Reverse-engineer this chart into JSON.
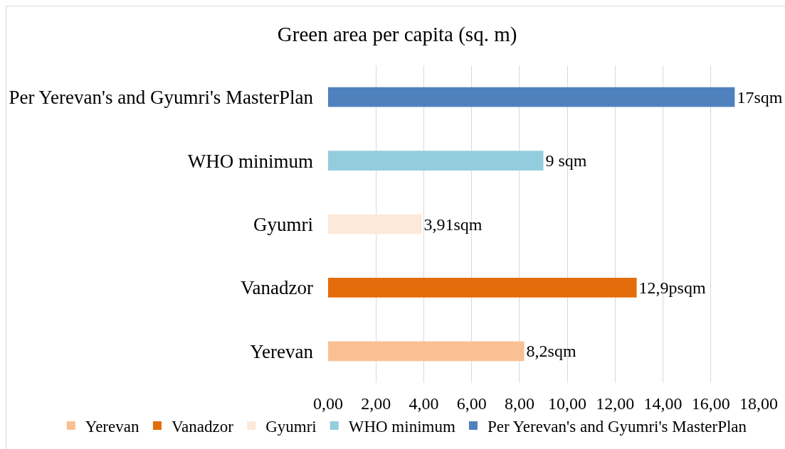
{
  "chart_data": {
    "type": "bar",
    "orientation": "horizontal",
    "title": "Green area per capita (sq. m)",
    "categories": [
      "Per Yerevan's and Gyumri's MasterPlan",
      "WHO minimum",
      "Gyumri",
      "Vanadzor",
      "Yerevan"
    ],
    "series": [
      {
        "name": "Yerevan",
        "color": "#f9c093",
        "values": [
          null,
          null,
          null,
          null,
          8.2
        ],
        "value_labels": [
          null,
          null,
          null,
          null,
          "8,2sqm"
        ]
      },
      {
        "name": "Vanadzor",
        "color": "#e46c0a",
        "values": [
          null,
          null,
          null,
          12.9,
          null
        ],
        "value_labels": [
          null,
          null,
          null,
          "12,9psqm",
          null
        ]
      },
      {
        "name": "Gyumri",
        "color": "#fde9d9",
        "values": [
          null,
          null,
          3.91,
          null,
          null
        ],
        "value_labels": [
          null,
          null,
          "3,91sqm",
          null,
          null
        ]
      },
      {
        "name": "WHO minimum",
        "color": "#93cddd",
        "values": [
          null,
          9,
          null,
          null,
          null
        ],
        "value_labels": [
          null,
          "9 sqm",
          null,
          null,
          null
        ]
      },
      {
        "name": "Per Yerevan's and Gyumri's MasterPlan",
        "color": "#4f81bd",
        "values": [
          17,
          null,
          null,
          null,
          null
        ],
        "value_labels": [
          "17sqm",
          null,
          null,
          null,
          null
        ]
      }
    ],
    "xlim": [
      0,
      18
    ],
    "xticks": [
      {
        "value": 0,
        "label": "0,00"
      },
      {
        "value": 2,
        "label": "2,00"
      },
      {
        "value": 4,
        "label": "4,00"
      },
      {
        "value": 6,
        "label": "6,00"
      },
      {
        "value": 8,
        "label": "8,00"
      },
      {
        "value": 10,
        "label": "10,00"
      },
      {
        "value": 12,
        "label": "12,00"
      },
      {
        "value": 14,
        "label": "14,00"
      },
      {
        "value": 16,
        "label": "16,00"
      },
      {
        "value": 18,
        "label": "18,00"
      }
    ],
    "grid": "x",
    "legend": "bottom"
  }
}
